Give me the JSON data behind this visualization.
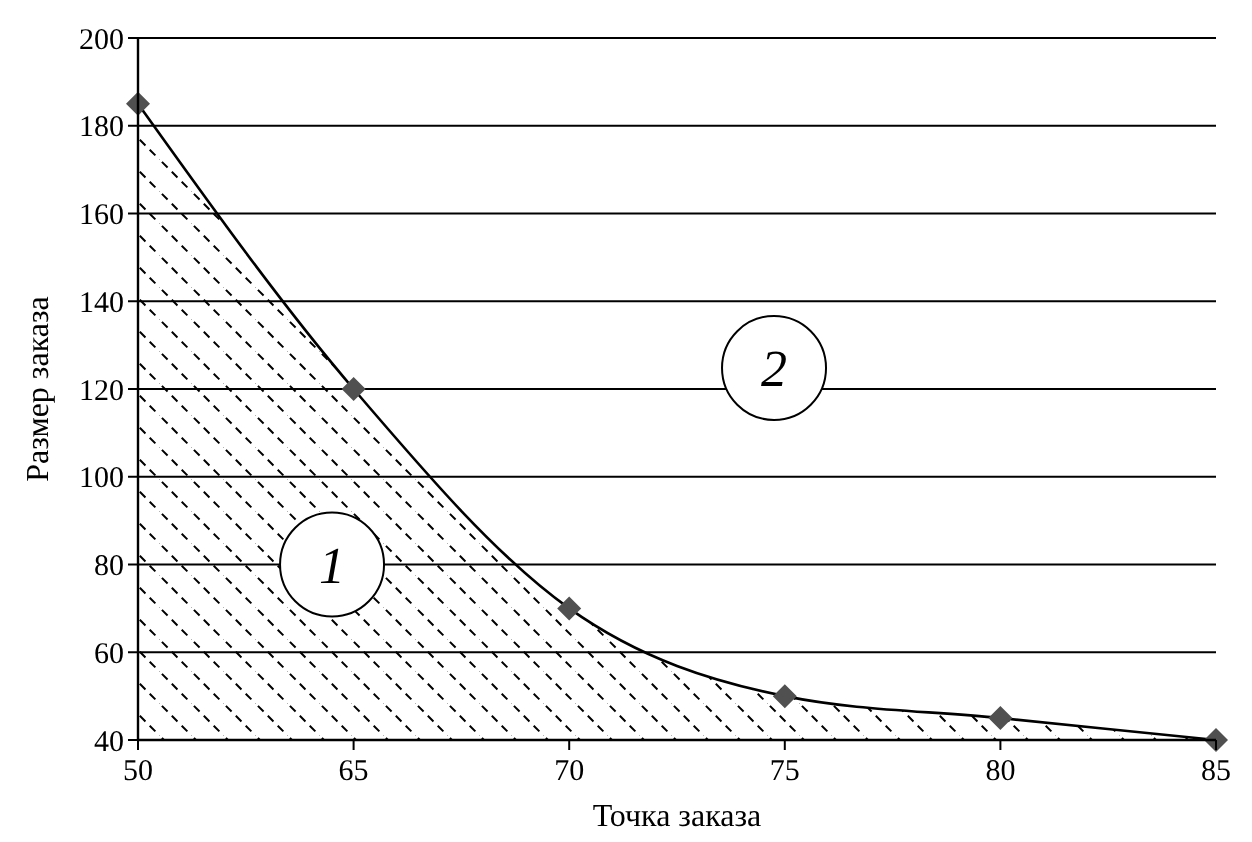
{
  "chart_data": {
    "type": "area",
    "xlabel": "Точка заказа",
    "ylabel": "Размер заказа",
    "categories": [
      "50",
      "65",
      "70",
      "75",
      "80",
      "85"
    ],
    "series": [
      {
        "color": "#000000",
        "values": [
          185,
          120,
          70,
          50,
          45,
          40
        ]
      }
    ],
    "ylim": [
      40,
      200
    ],
    "yticks": [
      40,
      60,
      80,
      100,
      120,
      140,
      160,
      180,
      200
    ],
    "grid": "y",
    "marker": "diamond",
    "annotations": [
      "1",
      "2"
    ]
  }
}
